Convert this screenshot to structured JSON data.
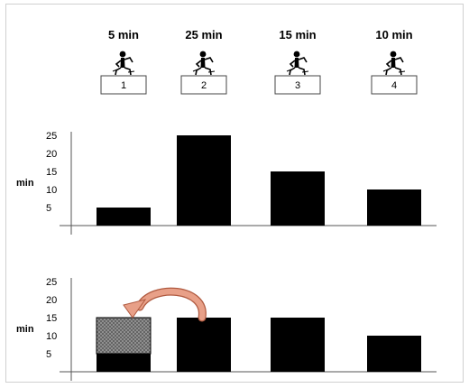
{
  "stations": [
    {
      "time": "5 min",
      "number": "1"
    },
    {
      "time": "25 min",
      "number": "2"
    },
    {
      "time": "15 min",
      "number": "3"
    },
    {
      "time": "10 min",
      "number": "4"
    }
  ],
  "chart_data": [
    {
      "type": "bar",
      "categories": [
        "1",
        "2",
        "3",
        "4"
      ],
      "values": [
        5,
        25,
        15,
        10
      ],
      "ylabel": "min",
      "yticks": [
        "5",
        "10",
        "15",
        "20",
        "25"
      ],
      "ylim": [
        0,
        25
      ],
      "bar_color": "#000000"
    },
    {
      "type": "bar",
      "categories": [
        "1",
        "2",
        "3",
        "4"
      ],
      "values": [
        5,
        15,
        15,
        10
      ],
      "moved_work": {
        "from_station": "2",
        "to_station": "1",
        "amount": 10
      },
      "ylabel": "min",
      "yticks": [
        "5",
        "10",
        "15",
        "20",
        "25"
      ],
      "ylim": [
        0,
        25
      ],
      "bar_color": "#000000",
      "moved_color": "#8a8a8a",
      "arrow_color": "#e8a088"
    }
  ]
}
